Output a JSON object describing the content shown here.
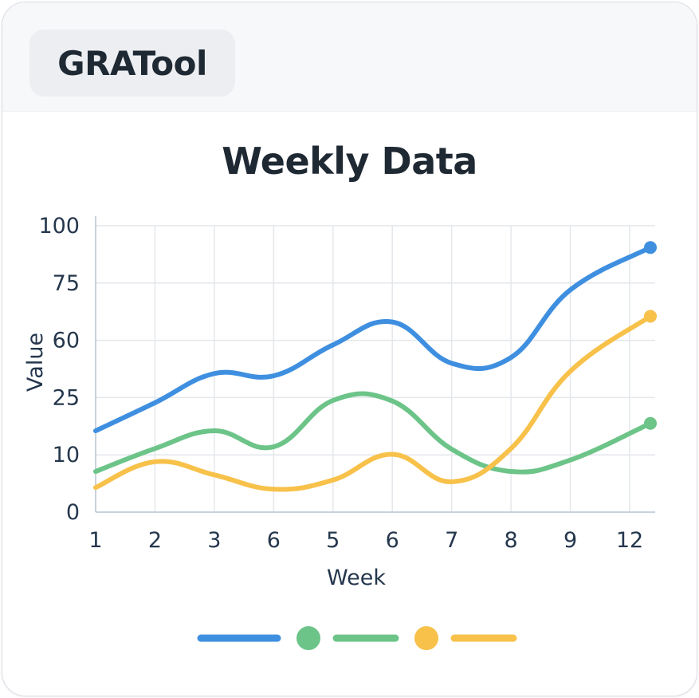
{
  "app": {
    "brand": "GRATool"
  },
  "chart_data": {
    "type": "line",
    "title": "Weekly Data",
    "xlabel": "Week",
    "ylabel": "Value",
    "categories": [
      "1",
      "2",
      "3",
      "6",
      "5",
      "6",
      "7",
      "8",
      "9",
      "12"
    ],
    "y_tick_labels": [
      "0",
      "10",
      "25",
      "60",
      "75",
      "100"
    ],
    "y_tick_positions": [
      0,
      1,
      2,
      3,
      4,
      5
    ],
    "ylim": [
      0,
      5
    ],
    "grid": true,
    "legend": "bottom",
    "series": [
      {
        "color": "#3f8fe0",
        "values": [
          1.42,
          1.91,
          2.42,
          2.38,
          2.92,
          3.32,
          2.6,
          2.7,
          3.88,
          4.62
        ],
        "end_marker": true
      },
      {
        "color": "#6cc488",
        "values": [
          0.71,
          1.11,
          1.42,
          1.14,
          1.95,
          1.94,
          1.1,
          0.71,
          0.91,
          1.55
        ],
        "end_marker": true
      },
      {
        "color": "#f7c14a",
        "values": [
          0.43,
          0.88,
          0.65,
          0.4,
          0.56,
          1.01,
          0.53,
          1.11,
          2.46,
          3.42
        ],
        "end_marker": true
      }
    ],
    "legend_entries": [
      {
        "color": "#3f8fe0",
        "style": "line"
      },
      {
        "color": "#6cc488",
        "style": "dot"
      },
      {
        "color": "#6cc488",
        "style": "line"
      },
      {
        "color": "#f7c14a",
        "style": "dot"
      },
      {
        "color": "#f7c14a",
        "style": "line"
      }
    ]
  }
}
